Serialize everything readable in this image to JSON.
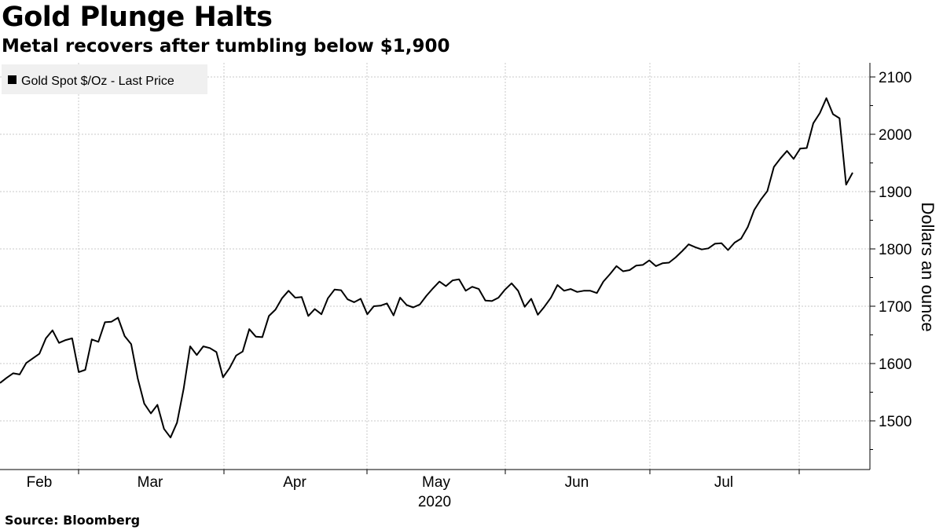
{
  "header": {
    "title": "Gold Plunge Halts",
    "subtitle": "Metal recovers after tumbling below $1,900"
  },
  "footer": {
    "source": "Source: Bloomberg"
  },
  "colors": {
    "line": "#000000",
    "grid": "#c8c8c8",
    "legend_bg": "#f0f0f0",
    "axis": "#000000"
  },
  "chart_data": {
    "type": "line",
    "title": "Gold Plunge Halts",
    "subtitle": "Metal recovers after tumbling below $1,900",
    "xlabel": "2020",
    "ylabel": "Dollars an ounce",
    "ylim": [
      1440,
      2120
    ],
    "yticks": [
      1500,
      1600,
      1700,
      1800,
      1900,
      2000,
      2100
    ],
    "grid": true,
    "legend_position": "top-left",
    "x_month_labels": [
      "Feb",
      "Mar",
      "Apr",
      "May",
      "Jun",
      "Jul"
    ],
    "x_year_label": "2020",
    "series": [
      {
        "name": "Gold Spot $/Oz - Last Price",
        "x_range": [
          "2020-01-27",
          "2020-07-29"
        ],
        "values": [
          1566,
          1575,
          1583,
          1581,
          1601,
          1609,
          1617,
          1644,
          1658,
          1636,
          1641,
          1644,
          1585,
          1589,
          1642,
          1638,
          1672,
          1673,
          1680,
          1648,
          1634,
          1574,
          1530,
          1513,
          1528,
          1486,
          1471,
          1497,
          1556,
          1630,
          1615,
          1630,
          1627,
          1620,
          1576,
          1592,
          1614,
          1621,
          1660,
          1647,
          1646,
          1683,
          1694,
          1714,
          1727,
          1715,
          1716,
          1683,
          1695,
          1686,
          1714,
          1729,
          1728,
          1712,
          1707,
          1713,
          1686,
          1700,
          1701,
          1705,
          1684,
          1715,
          1702,
          1698,
          1703,
          1718,
          1731,
          1743,
          1735,
          1745,
          1747,
          1727,
          1734,
          1730,
          1710,
          1709,
          1715,
          1729,
          1740,
          1727,
          1699,
          1713,
          1685,
          1699,
          1715,
          1737,
          1727,
          1730,
          1725,
          1727,
          1727,
          1723,
          1743,
          1756,
          1770,
          1761,
          1763,
          1771,
          1772,
          1780,
          1770,
          1775,
          1776,
          1785,
          1796,
          1808,
          1803,
          1799,
          1801,
          1809,
          1810,
          1798,
          1811,
          1818,
          1838,
          1868,
          1886,
          1901,
          1943,
          1958,
          1971,
          1957,
          1975,
          1976,
          2019,
          2037,
          2063,
          2035,
          2028,
          1912,
          1933
        ]
      }
    ]
  }
}
